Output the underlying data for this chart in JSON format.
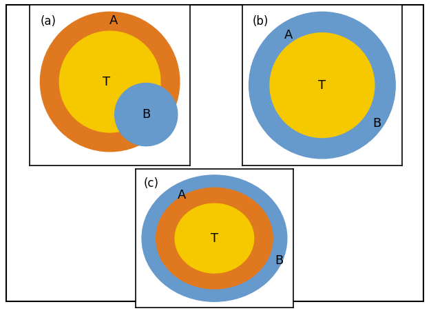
{
  "background": "#ffffff",
  "orange": "#E07820",
  "yellow": "#F5C800",
  "blue": "#6699CC",
  "label_fontsize": 13,
  "panel_label_fontsize": 12,
  "panels": [
    "(a)",
    "(b)",
    "(c)"
  ]
}
